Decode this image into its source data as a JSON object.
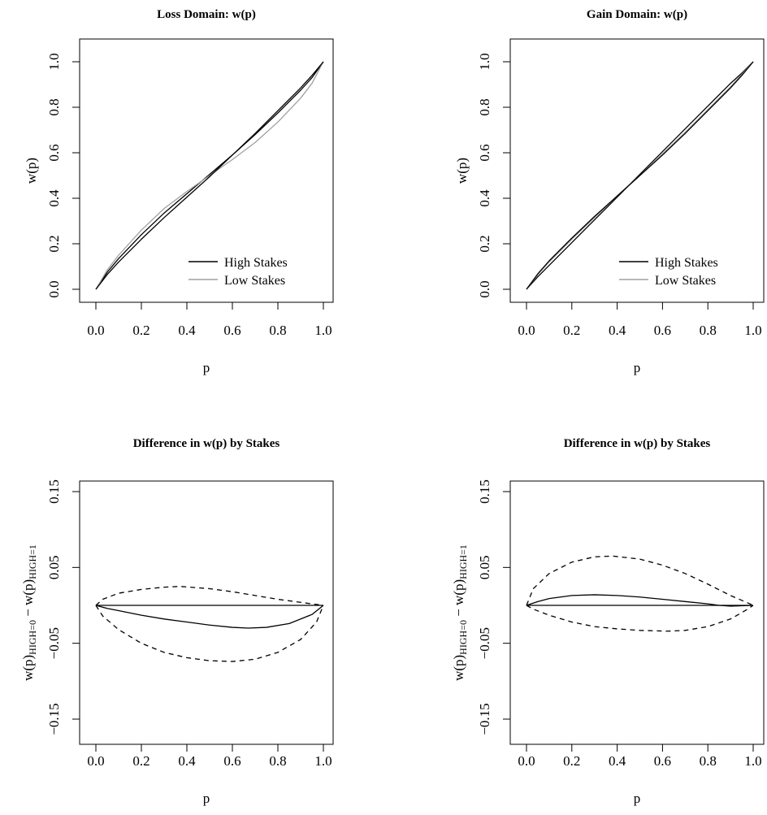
{
  "chart_data": [
    {
      "type": "line",
      "title": "Loss Domain: w(p)",
      "xlabel": "p",
      "ylabel": "w(p)",
      "xlim": [
        0,
        1
      ],
      "ylim": [
        0,
        1
      ],
      "xticks": [
        "0.0",
        "0.2",
        "0.4",
        "0.6",
        "0.8",
        "1.0"
      ],
      "yticks": [
        "0.0",
        "0.2",
        "0.4",
        "0.6",
        "0.8",
        "1.0"
      ],
      "legend": "bottom-right",
      "series": [
        {
          "name": "High Stakes",
          "color": "#000000",
          "style": "solid",
          "x": [
            0,
            0.05,
            0.1,
            0.2,
            0.3,
            0.4,
            0.5,
            0.6,
            0.7,
            0.8,
            0.9,
            0.95,
            1.0
          ],
          "y": [
            0,
            0.075,
            0.135,
            0.24,
            0.335,
            0.42,
            0.505,
            0.59,
            0.68,
            0.775,
            0.875,
            0.93,
            1.0
          ]
        },
        {
          "name": "Low Stakes",
          "color": "#a0a0a0",
          "style": "solid",
          "x": [
            0,
            0.05,
            0.1,
            0.2,
            0.3,
            0.4,
            0.5,
            0.6,
            0.7,
            0.8,
            0.9,
            0.95,
            1.0
          ],
          "y": [
            0,
            0.085,
            0.15,
            0.26,
            0.355,
            0.43,
            0.5,
            0.57,
            0.645,
            0.735,
            0.84,
            0.905,
            1.0
          ]
        },
        {
          "name": "",
          "color": "#000000",
          "style": "solid",
          "x": [
            0,
            0.05,
            0.1,
            0.2,
            0.3,
            0.4,
            0.5,
            0.6,
            0.7,
            0.8,
            0.9,
            0.95,
            1.0
          ],
          "y": [
            0,
            0.065,
            0.12,
            0.22,
            0.315,
            0.405,
            0.495,
            0.59,
            0.685,
            0.785,
            0.885,
            0.94,
            1.0
          ]
        }
      ]
    },
    {
      "type": "line",
      "title": "Gain Domain: w(p)",
      "xlabel": "p",
      "ylabel": "w(p)",
      "xlim": [
        0,
        1
      ],
      "ylim": [
        0,
        1
      ],
      "xticks": [
        "0.0",
        "0.2",
        "0.4",
        "0.6",
        "0.8",
        "1.0"
      ],
      "yticks": [
        "0.0",
        "0.2",
        "0.4",
        "0.6",
        "0.8",
        "1.0"
      ],
      "legend": "bottom-right",
      "series": [
        {
          "name": "High Stakes",
          "color": "#000000",
          "style": "solid",
          "x": [
            0,
            0.05,
            0.1,
            0.2,
            0.3,
            0.4,
            0.5,
            0.6,
            0.7,
            0.8,
            0.9,
            0.95,
            1.0
          ],
          "y": [
            0,
            0.055,
            0.105,
            0.205,
            0.305,
            0.405,
            0.505,
            0.605,
            0.705,
            0.805,
            0.905,
            0.95,
            1.0
          ]
        },
        {
          "name": "Low Stakes",
          "color": "#a0a0a0",
          "style": "solid",
          "x": [
            0,
            0.05,
            0.1,
            0.2,
            0.3,
            0.4,
            0.5,
            0.6,
            0.7,
            0.8,
            0.9,
            0.95,
            1.0
          ],
          "y": [
            0,
            0.065,
            0.12,
            0.22,
            0.315,
            0.41,
            0.5,
            0.595,
            0.69,
            0.79,
            0.89,
            0.945,
            1.0
          ]
        },
        {
          "name": "",
          "color": "#000000",
          "style": "solid",
          "x": [
            0,
            0.05,
            0.1,
            0.2,
            0.3,
            0.4,
            0.5,
            0.6,
            0.7,
            0.8,
            0.9,
            0.95,
            1.0
          ],
          "y": [
            0,
            0.068,
            0.125,
            0.225,
            0.32,
            0.41,
            0.5,
            0.59,
            0.685,
            0.785,
            0.885,
            0.94,
            1.0
          ]
        }
      ]
    },
    {
      "type": "line",
      "title": "Difference in w(p) by Stakes",
      "xlabel": "p",
      "ylabel": "w(p)HIGH=0 − w(p)HIGH=1",
      "xlim": [
        0,
        1
      ],
      "ylim": [
        -0.15,
        0.15
      ],
      "xticks": [
        "0.0",
        "0.2",
        "0.4",
        "0.6",
        "0.8",
        "1.0"
      ],
      "yticks": [
        "−0.15",
        "−0.05",
        "0.05",
        "0.15"
      ],
      "series": [
        {
          "name": "",
          "color": "#000000",
          "style": "solid",
          "x": [
            0,
            1
          ],
          "y": [
            0,
            0
          ]
        },
        {
          "name": "",
          "color": "#000000",
          "style": "solid",
          "x": [
            0,
            0.05,
            0.1,
            0.2,
            0.3,
            0.4,
            0.5,
            0.6,
            0.67,
            0.75,
            0.85,
            0.95,
            1.0
          ],
          "y": [
            0,
            -0.004,
            -0.007,
            -0.013,
            -0.018,
            -0.022,
            -0.026,
            -0.029,
            -0.03,
            -0.029,
            -0.024,
            -0.012,
            0
          ]
        },
        {
          "name": "",
          "color": "#000000",
          "style": "dashed",
          "x": [
            0,
            0.03,
            0.1,
            0.2,
            0.3,
            0.37,
            0.5,
            0.6,
            0.7,
            0.8,
            0.9,
            1.0
          ],
          "y": [
            0,
            0.008,
            0.016,
            0.021,
            0.024,
            0.025,
            0.022,
            0.018,
            0.013,
            0.008,
            0.004,
            0
          ]
        },
        {
          "name": "",
          "color": "#000000",
          "style": "dashed",
          "x": [
            0,
            0.03,
            0.1,
            0.2,
            0.3,
            0.4,
            0.5,
            0.6,
            0.7,
            0.8,
            0.9,
            0.97,
            1.0
          ],
          "y": [
            0,
            -0.014,
            -0.032,
            -0.05,
            -0.062,
            -0.069,
            -0.073,
            -0.074,
            -0.071,
            -0.062,
            -0.045,
            -0.022,
            0
          ]
        }
      ]
    },
    {
      "type": "line",
      "title": "Difference in w(p) by Stakes",
      "xlabel": "p",
      "ylabel": "w(p)HIGH=0 − w(p)HIGH=1",
      "xlim": [
        0,
        1
      ],
      "ylim": [
        -0.15,
        0.15
      ],
      "xticks": [
        "0.0",
        "0.2",
        "0.4",
        "0.6",
        "0.8",
        "1.0"
      ],
      "yticks": [
        "−0.15",
        "−0.05",
        "0.05",
        "0.15"
      ],
      "series": [
        {
          "name": "",
          "color": "#000000",
          "style": "solid",
          "x": [
            0,
            1
          ],
          "y": [
            0,
            0
          ]
        },
        {
          "name": "",
          "color": "#000000",
          "style": "solid",
          "x": [
            0,
            0.05,
            0.1,
            0.2,
            0.3,
            0.4,
            0.5,
            0.6,
            0.7,
            0.8,
            0.85,
            0.9,
            1.0
          ],
          "y": [
            0,
            0.005,
            0.009,
            0.013,
            0.014,
            0.013,
            0.011,
            0.008,
            0.005,
            0.002,
            0,
            -0.001,
            0
          ]
        },
        {
          "name": "",
          "color": "#000000",
          "style": "dashed",
          "x": [
            0,
            0.03,
            0.1,
            0.2,
            0.3,
            0.38,
            0.5,
            0.6,
            0.7,
            0.8,
            0.9,
            0.97,
            1.0
          ],
          "y": [
            0,
            0.022,
            0.042,
            0.057,
            0.064,
            0.065,
            0.061,
            0.053,
            0.042,
            0.028,
            0.013,
            0.004,
            0
          ]
        },
        {
          "name": "",
          "color": "#000000",
          "style": "dashed",
          "x": [
            0,
            0.03,
            0.1,
            0.2,
            0.3,
            0.4,
            0.5,
            0.62,
            0.7,
            0.8,
            0.9,
            0.97,
            1.0
          ],
          "y": [
            0,
            -0.005,
            -0.013,
            -0.022,
            -0.028,
            -0.031,
            -0.033,
            -0.034,
            -0.033,
            -0.028,
            -0.018,
            -0.006,
            0
          ]
        }
      ]
    }
  ]
}
